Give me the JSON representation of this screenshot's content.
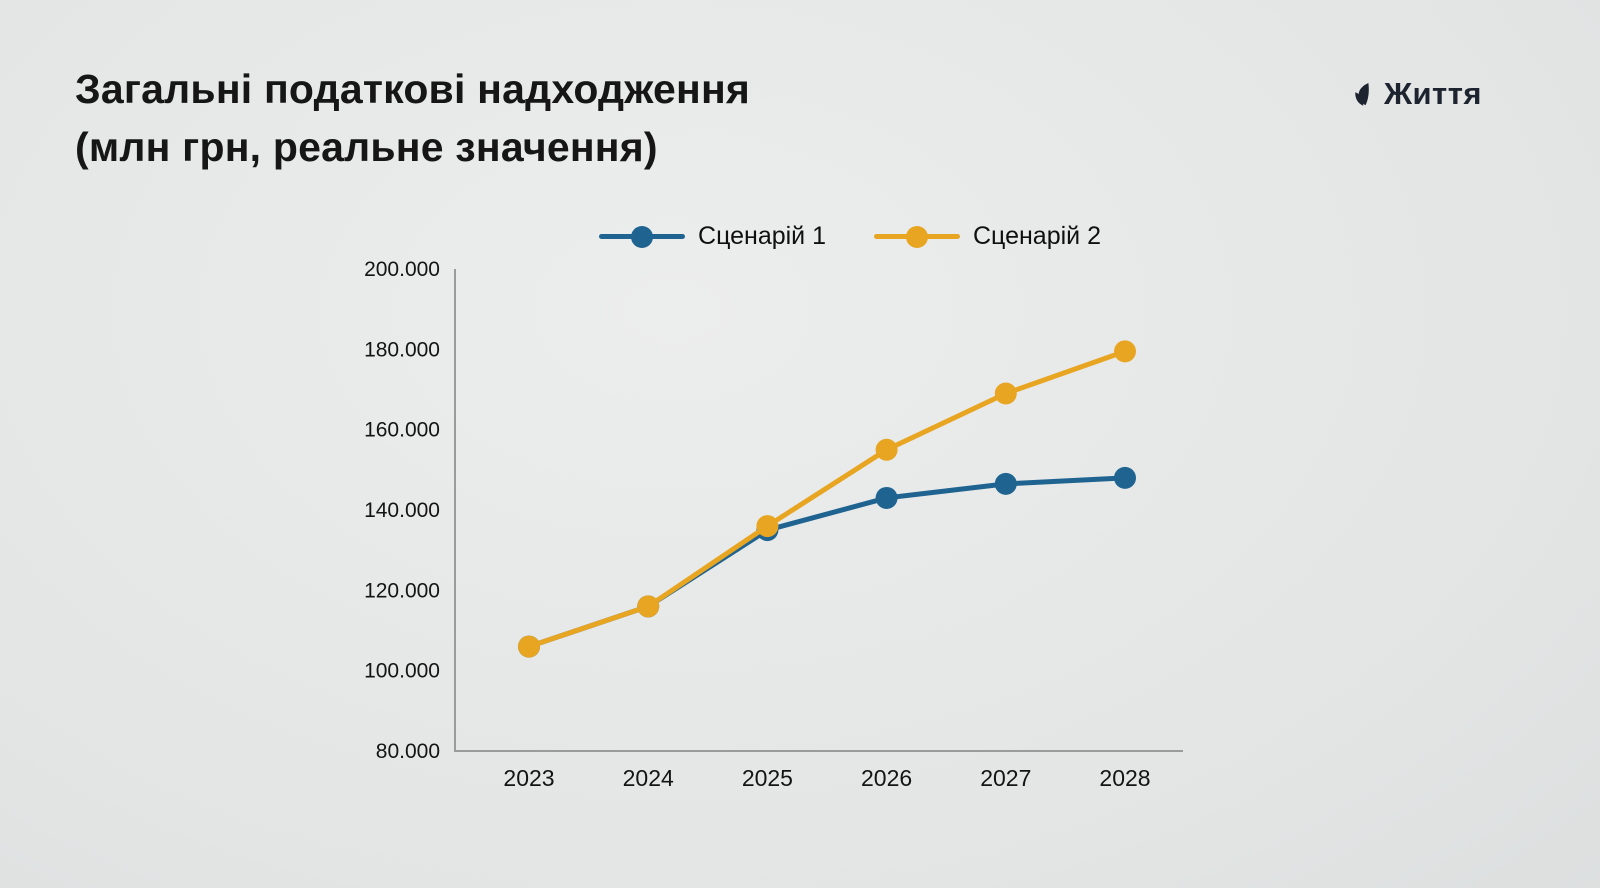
{
  "title": "Загальні податкові надходження\n(млн грн, реальне значення)",
  "brand": {
    "name": "Життя",
    "icon": "leaf-icon",
    "color": "#1d2430"
  },
  "chart_data": {
    "type": "line",
    "title": "Загальні податкові надходження (млн грн, реальне значення)",
    "x": [
      2023,
      2024,
      2025,
      2026,
      2027,
      2028
    ],
    "xtick_labels": [
      "2023",
      "2024",
      "2025",
      "2026",
      "2027",
      "2028"
    ],
    "series": [
      {
        "name": "Сценарій 1",
        "color": "#1f6491",
        "values": [
          106000,
          116000,
          135000,
          143000,
          146500,
          148000
        ]
      },
      {
        "name": "Сценарій 2",
        "color": "#e8a522",
        "values": [
          106000,
          116000,
          136000,
          155000,
          169000,
          179500
        ]
      }
    ],
    "ylim": [
      80000,
      200000
    ],
    "ytick_step": 20000,
    "ytick_labels": [
      "80.000",
      "100.000",
      "120.000",
      "140.000",
      "160.000",
      "180.000",
      "200.000"
    ],
    "legend_position": "top",
    "grid": false,
    "axis_color": "#9b9b9b",
    "text_color": "#141414"
  }
}
